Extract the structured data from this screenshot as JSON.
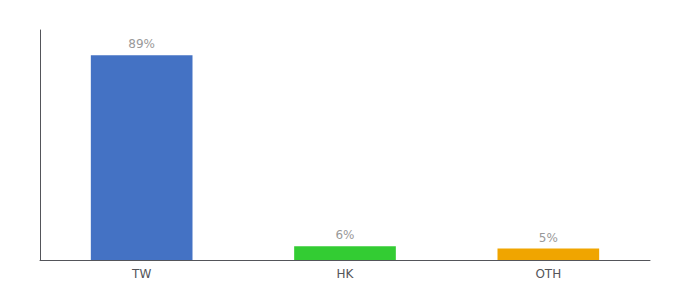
{
  "chart_data": {
    "type": "bar",
    "categories": [
      "TW",
      "HK",
      "OTH"
    ],
    "values": [
      89,
      6,
      5
    ],
    "value_labels": [
      "89%",
      "6%",
      "5%"
    ],
    "data_labels": true,
    "colors": [
      "#4472c4",
      "#33cc33",
      "#f0a500"
    ],
    "ylim": [
      0,
      100
    ],
    "grid": false,
    "tick_labels": "x"
  }
}
